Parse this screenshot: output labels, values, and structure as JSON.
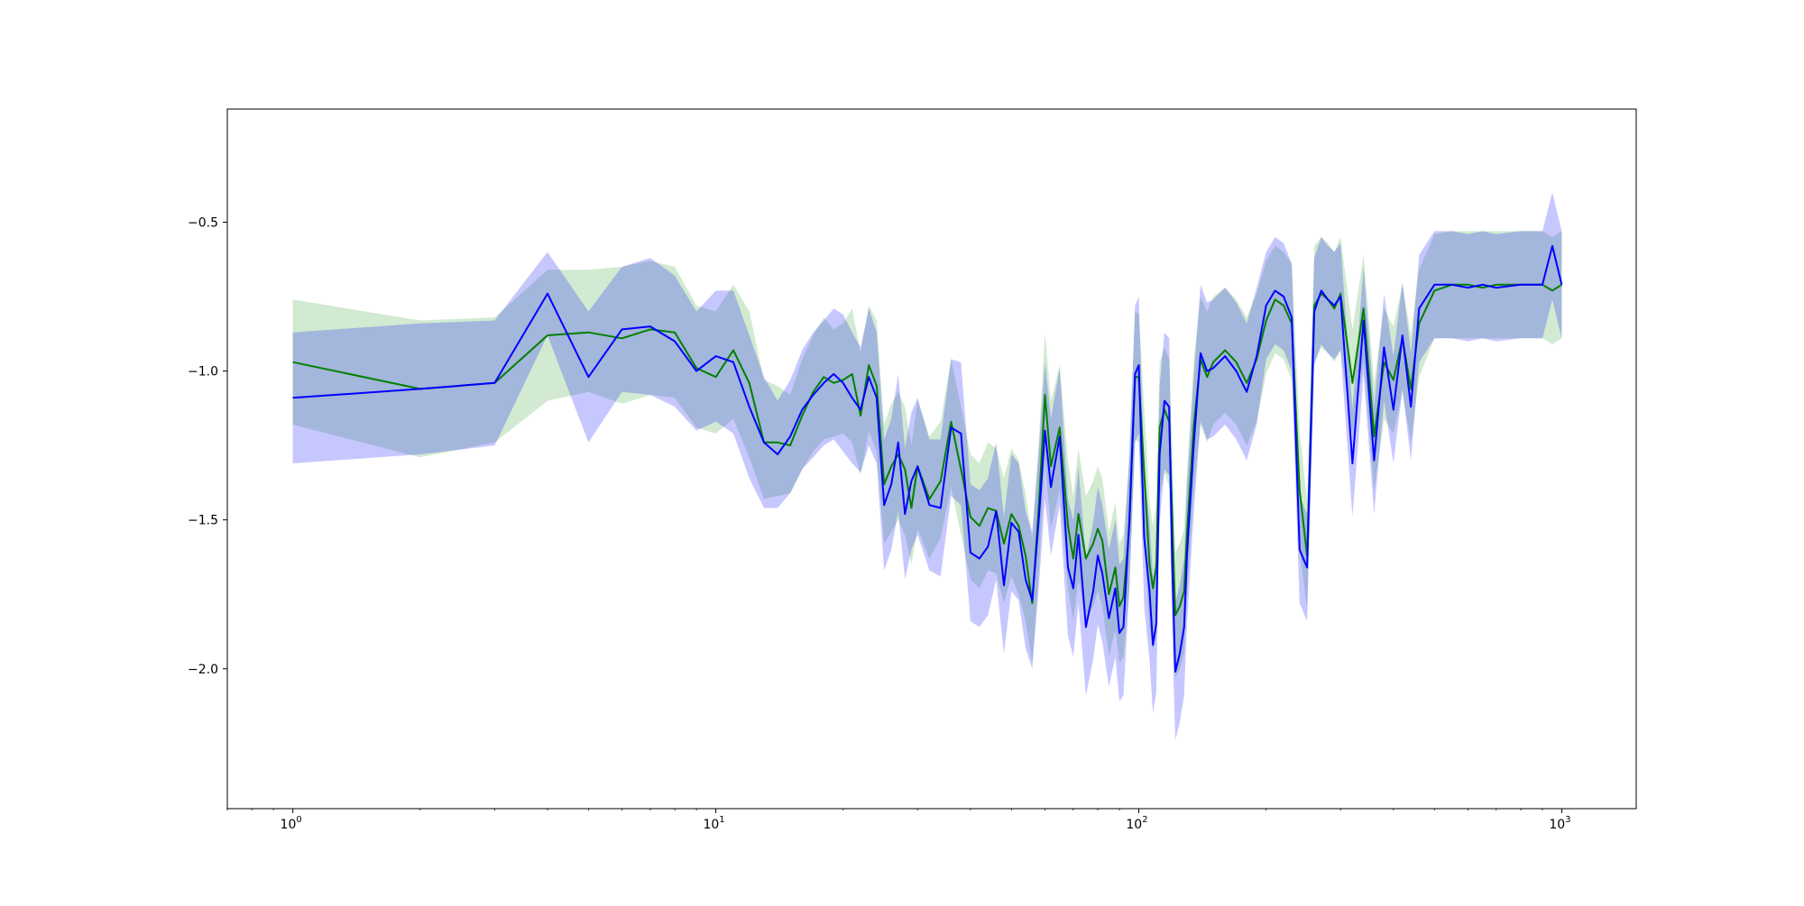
{
  "chart_data": {
    "type": "line",
    "title": "",
    "xlabel": "",
    "ylabel": "",
    "xscale": "log",
    "xlim": [
      0.7,
      1500
    ],
    "ylim": [
      -2.47,
      -0.12
    ],
    "grid": false,
    "legend": "none",
    "x_ticks": [
      {
        "value": 1,
        "base": "10",
        "exp": "0"
      },
      {
        "value": 10,
        "base": "10",
        "exp": "1"
      },
      {
        "value": 100,
        "base": "10",
        "exp": "2"
      },
      {
        "value": 1000,
        "base": "10",
        "exp": "3"
      }
    ],
    "y_ticks": [
      {
        "value": -0.5,
        "label": "−0.5"
      },
      {
        "value": -1.0,
        "label": "−1.0"
      },
      {
        "value": -1.5,
        "label": "−1.5"
      },
      {
        "value": -2.0,
        "label": "−2.0"
      }
    ],
    "series": [
      {
        "color": "#008000",
        "band_color": "#2ca02c",
        "x": [
          1,
          2,
          3,
          4,
          5,
          6,
          7,
          8,
          9,
          10,
          11,
          12,
          13,
          14,
          15,
          16,
          17,
          18,
          19,
          20,
          21,
          22,
          23,
          24,
          25,
          26,
          27,
          28,
          29,
          30,
          32,
          34,
          36,
          38,
          40,
          42,
          44,
          46,
          48,
          50,
          52,
          54,
          56,
          58,
          60,
          62,
          65,
          68,
          70,
          72,
          75,
          78,
          80,
          82,
          85,
          88,
          90,
          92,
          95,
          98,
          100,
          103,
          106,
          108,
          110,
          112,
          115,
          118,
          120,
          122,
          125,
          128,
          130,
          135,
          140,
          145,
          150,
          160,
          170,
          180,
          190,
          200,
          210,
          220,
          230,
          240,
          250,
          260,
          270,
          280,
          290,
          300,
          320,
          340,
          360,
          380,
          400,
          420,
          440,
          460,
          500,
          550,
          600,
          650,
          700,
          800,
          900,
          950,
          1000
        ],
        "y": [
          -0.97,
          -1.06,
          -1.04,
          -0.88,
          -0.87,
          -0.89,
          -0.86,
          -0.87,
          -0.99,
          -1.02,
          -0.93,
          -1.04,
          -1.24,
          -1.24,
          -1.25,
          -1.15,
          -1.07,
          -1.02,
          -1.04,
          -1.03,
          -1.01,
          -1.15,
          -0.98,
          -1.05,
          -1.38,
          -1.32,
          -1.28,
          -1.33,
          -1.46,
          -1.32,
          -1.43,
          -1.37,
          -1.17,
          -1.33,
          -1.49,
          -1.52,
          -1.46,
          -1.47,
          -1.58,
          -1.48,
          -1.52,
          -1.62,
          -1.78,
          -1.46,
          -1.08,
          -1.32,
          -1.19,
          -1.52,
          -1.63,
          -1.48,
          -1.63,
          -1.58,
          -1.53,
          -1.57,
          -1.75,
          -1.66,
          -1.79,
          -1.76,
          -1.52,
          -1.02,
          -1.02,
          -1.34,
          -1.65,
          -1.73,
          -1.66,
          -1.19,
          -1.13,
          -1.17,
          -1.49,
          -1.82,
          -1.79,
          -1.74,
          -1.55,
          -1.18,
          -0.96,
          -1.02,
          -0.97,
          -0.93,
          -0.97,
          -1.04,
          -0.96,
          -0.83,
          -0.76,
          -0.78,
          -0.84,
          -1.4,
          -1.62,
          -0.78,
          -0.74,
          -0.76,
          -0.79,
          -0.74,
          -1.04,
          -0.79,
          -1.22,
          -0.97,
          -1.03,
          -0.89,
          -1.06,
          -0.84,
          -0.73,
          -0.71,
          -0.71,
          -0.72,
          -0.71,
          -0.71,
          -0.71,
          -0.73,
          -0.71
        ],
        "band_lower": [
          -1.18,
          -1.29,
          -1.24,
          -1.1,
          -1.07,
          -1.11,
          -1.08,
          -1.09,
          -1.19,
          -1.21,
          -1.16,
          -1.29,
          -1.43,
          -1.42,
          -1.41,
          -1.33,
          -1.27,
          -1.23,
          -1.22,
          -1.21,
          -1.24,
          -1.35,
          -1.2,
          -1.27,
          -1.58,
          -1.54,
          -1.5,
          -1.55,
          -1.65,
          -1.53,
          -1.63,
          -1.56,
          -1.39,
          -1.55,
          -1.7,
          -1.73,
          -1.67,
          -1.68,
          -1.78,
          -1.69,
          -1.75,
          -1.84,
          -1.98,
          -1.68,
          -1.3,
          -1.53,
          -1.4,
          -1.73,
          -1.84,
          -1.7,
          -1.84,
          -1.79,
          -1.74,
          -1.79,
          -1.96,
          -1.87,
          -1.98,
          -1.96,
          -1.73,
          -1.23,
          -1.24,
          -1.55,
          -1.86,
          -1.94,
          -1.88,
          -1.42,
          -1.34,
          -1.39,
          -1.71,
          -2.03,
          -2.0,
          -1.95,
          -1.76,
          -1.39,
          -1.18,
          -1.24,
          -1.18,
          -1.14,
          -1.18,
          -1.25,
          -1.17,
          -1.01,
          -0.94,
          -0.96,
          -1.03,
          -1.6,
          -1.8,
          -0.97,
          -0.92,
          -0.94,
          -0.97,
          -0.93,
          -1.22,
          -0.97,
          -1.4,
          -1.16,
          -1.21,
          -1.07,
          -1.24,
          -1.02,
          -0.89,
          -0.89,
          -0.89,
          -0.89,
          -0.89,
          -0.89,
          -0.89,
          -0.91,
          -0.89
        ],
        "band_upper": [
          -0.76,
          -0.83,
          -0.82,
          -0.66,
          -0.66,
          -0.65,
          -0.63,
          -0.65,
          -0.78,
          -0.8,
          -0.71,
          -0.8,
          -1.03,
          -1.05,
          -1.08,
          -0.96,
          -0.88,
          -0.82,
          -0.86,
          -0.84,
          -0.79,
          -0.94,
          -0.78,
          -0.83,
          -1.18,
          -1.11,
          -1.07,
          -1.12,
          -1.25,
          -1.1,
          -1.22,
          -1.17,
          -0.96,
          -1.12,
          -1.28,
          -1.31,
          -1.24,
          -1.26,
          -1.36,
          -1.26,
          -1.3,
          -1.41,
          -1.57,
          -1.24,
          -0.87,
          -1.1,
          -0.98,
          -1.3,
          -1.42,
          -1.26,
          -1.42,
          -1.37,
          -1.32,
          -1.36,
          -1.54,
          -1.44,
          -1.58,
          -1.55,
          -1.3,
          -0.8,
          -0.81,
          -1.12,
          -1.44,
          -1.52,
          -1.45,
          -0.97,
          -0.92,
          -0.96,
          -1.27,
          -1.61,
          -1.58,
          -1.53,
          -1.34,
          -0.96,
          -0.75,
          -0.8,
          -0.75,
          -0.72,
          -0.76,
          -0.82,
          -0.74,
          -0.63,
          -0.58,
          -0.6,
          -0.64,
          -1.2,
          -1.44,
          -0.58,
          -0.55,
          -0.57,
          -0.6,
          -0.55,
          -0.86,
          -0.61,
          -1.04,
          -0.79,
          -0.85,
          -0.71,
          -0.88,
          -0.66,
          -0.54,
          -0.53,
          -0.53,
          -0.53,
          -0.53,
          -0.53,
          -0.53,
          -0.55,
          -0.53
        ]
      },
      {
        "color": "#0000ff",
        "band_color": "#0000ff",
        "x": [
          1,
          2,
          3,
          4,
          5,
          6,
          7,
          8,
          9,
          10,
          11,
          12,
          13,
          14,
          15,
          16,
          17,
          18,
          19,
          20,
          21,
          22,
          23,
          24,
          25,
          26,
          27,
          28,
          29,
          30,
          32,
          34,
          36,
          38,
          40,
          42,
          44,
          46,
          48,
          50,
          52,
          54,
          56,
          58,
          60,
          62,
          65,
          68,
          70,
          72,
          75,
          78,
          80,
          82,
          85,
          88,
          90,
          92,
          95,
          98,
          100,
          103,
          106,
          108,
          110,
          112,
          115,
          118,
          120,
          122,
          125,
          128,
          130,
          135,
          140,
          145,
          150,
          160,
          170,
          180,
          190,
          200,
          210,
          220,
          230,
          240,
          250,
          260,
          270,
          280,
          290,
          300,
          320,
          340,
          360,
          380,
          400,
          420,
          440,
          460,
          500,
          550,
          600,
          650,
          700,
          800,
          900,
          950,
          1000
        ],
        "y": [
          -1.09,
          -1.06,
          -1.04,
          -0.74,
          -1.02,
          -0.86,
          -0.85,
          -0.9,
          -1.0,
          -0.95,
          -0.97,
          -1.12,
          -1.24,
          -1.28,
          -1.22,
          -1.13,
          -1.08,
          -1.04,
          -1.01,
          -1.04,
          -1.09,
          -1.13,
          -1.02,
          -1.09,
          -1.45,
          -1.38,
          -1.24,
          -1.48,
          -1.37,
          -1.32,
          -1.45,
          -1.46,
          -1.19,
          -1.21,
          -1.61,
          -1.63,
          -1.59,
          -1.47,
          -1.72,
          -1.51,
          -1.54,
          -1.7,
          -1.77,
          -1.5,
          -1.2,
          -1.39,
          -1.22,
          -1.66,
          -1.73,
          -1.55,
          -1.86,
          -1.74,
          -1.62,
          -1.68,
          -1.83,
          -1.73,
          -1.88,
          -1.86,
          -1.5,
          -1.01,
          -0.98,
          -1.56,
          -1.74,
          -1.92,
          -1.85,
          -1.28,
          -1.1,
          -1.12,
          -1.65,
          -2.01,
          -1.95,
          -1.86,
          -1.62,
          -1.24,
          -0.94,
          -1.0,
          -0.99,
          -0.95,
          -1.0,
          -1.07,
          -0.95,
          -0.78,
          -0.73,
          -0.75,
          -0.82,
          -1.6,
          -1.66,
          -0.8,
          -0.73,
          -0.76,
          -0.78,
          -0.75,
          -1.31,
          -0.83,
          -1.3,
          -0.92,
          -1.13,
          -0.88,
          -1.12,
          -0.79,
          -0.71,
          -0.71,
          -0.72,
          -0.71,
          -0.72,
          -0.71,
          -0.71,
          -0.58,
          -0.71
        ],
        "band_lower": [
          -1.31,
          -1.28,
          -1.25,
          -0.88,
          -1.24,
          -1.07,
          -1.08,
          -1.12,
          -1.2,
          -1.17,
          -1.21,
          -1.36,
          -1.46,
          -1.46,
          -1.41,
          -1.33,
          -1.29,
          -1.25,
          -1.23,
          -1.27,
          -1.31,
          -1.34,
          -1.25,
          -1.31,
          -1.67,
          -1.6,
          -1.47,
          -1.7,
          -1.6,
          -1.55,
          -1.67,
          -1.69,
          -1.42,
          -1.45,
          -1.84,
          -1.86,
          -1.82,
          -1.7,
          -1.95,
          -1.74,
          -1.77,
          -1.93,
          -2.0,
          -1.73,
          -1.43,
          -1.62,
          -1.45,
          -1.89,
          -1.96,
          -1.78,
          -2.09,
          -1.97,
          -1.85,
          -1.91,
          -2.06,
          -1.96,
          -2.11,
          -2.09,
          -1.73,
          -1.24,
          -1.21,
          -1.79,
          -1.97,
          -2.15,
          -2.08,
          -1.51,
          -1.33,
          -1.35,
          -1.88,
          -2.24,
          -2.18,
          -2.09,
          -1.85,
          -1.47,
          -1.17,
          -1.23,
          -1.22,
          -1.18,
          -1.23,
          -1.3,
          -1.18,
          -0.96,
          -0.91,
          -0.93,
          -1.0,
          -1.78,
          -1.84,
          -0.98,
          -0.91,
          -0.94,
          -0.96,
          -0.93,
          -1.49,
          -1.01,
          -1.48,
          -1.1,
          -1.31,
          -1.06,
          -1.3,
          -0.97,
          -0.89,
          -0.89,
          -0.9,
          -0.89,
          -0.9,
          -0.89,
          -0.89,
          -0.76,
          -0.89
        ],
        "band_upper": [
          -0.87,
          -0.84,
          -0.83,
          -0.6,
          -0.8,
          -0.65,
          -0.62,
          -0.68,
          -0.8,
          -0.73,
          -0.73,
          -0.88,
          -1.02,
          -1.1,
          -1.03,
          -0.93,
          -0.87,
          -0.83,
          -0.79,
          -0.81,
          -0.87,
          -0.92,
          -0.79,
          -0.87,
          -1.23,
          -1.16,
          -1.01,
          -1.26,
          -1.14,
          -1.09,
          -1.23,
          -1.23,
          -0.96,
          -0.97,
          -1.38,
          -1.4,
          -1.36,
          -1.24,
          -1.49,
          -1.28,
          -1.31,
          -1.47,
          -1.54,
          -1.27,
          -0.97,
          -1.16,
          -0.99,
          -1.43,
          -1.5,
          -1.32,
          -1.63,
          -1.51,
          -1.39,
          -1.45,
          -1.6,
          -1.5,
          -1.65,
          -1.63,
          -1.27,
          -0.78,
          -0.75,
          -1.33,
          -1.51,
          -1.69,
          -1.62,
          -1.05,
          -0.87,
          -0.89,
          -1.42,
          -1.78,
          -1.72,
          -1.63,
          -1.39,
          -1.01,
          -0.71,
          -0.77,
          -0.76,
          -0.72,
          -0.77,
          -0.84,
          -0.72,
          -0.6,
          -0.55,
          -0.57,
          -0.64,
          -1.42,
          -1.48,
          -0.62,
          -0.55,
          -0.58,
          -0.6,
          -0.57,
          -1.13,
          -0.65,
          -1.12,
          -0.74,
          -0.95,
          -0.7,
          -0.94,
          -0.61,
          -0.53,
          -0.53,
          -0.54,
          -0.53,
          -0.54,
          -0.53,
          -0.53,
          -0.4,
          -0.53
        ]
      }
    ]
  }
}
